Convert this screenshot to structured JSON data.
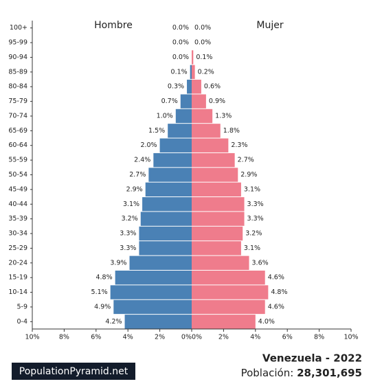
{
  "chart_data": {
    "type": "pyramid",
    "categories": [
      "0-4",
      "5-9",
      "10-14",
      "15-19",
      "20-24",
      "25-29",
      "30-34",
      "35-39",
      "40-44",
      "45-49",
      "50-54",
      "55-59",
      "60-64",
      "65-69",
      "70-74",
      "75-79",
      "80-84",
      "85-89",
      "90-94",
      "95-99",
      "100+"
    ],
    "series": [
      {
        "name": "Hombre",
        "color": "#4a81b5",
        "side": "left",
        "values": [
          4.2,
          4.9,
          5.1,
          4.8,
          3.9,
          3.3,
          3.3,
          3.2,
          3.1,
          2.9,
          2.7,
          2.4,
          2.0,
          1.5,
          1.0,
          0.7,
          0.3,
          0.1,
          0.0,
          0.0,
          0.0
        ],
        "value_labels": [
          "4.2%",
          "4.9%",
          "5.1%",
          "4.8%",
          "3.9%",
          "3.3%",
          "3.3%",
          "3.2%",
          "3.1%",
          "2.9%",
          "2.7%",
          "2.4%",
          "2.0%",
          "1.5%",
          "1.0%",
          "0.7%",
          "0.3%",
          "0.1%",
          "0.0%",
          "0.0%",
          "0.0%"
        ]
      },
      {
        "name": "Mujer",
        "color": "#ef7c8c",
        "side": "right",
        "values": [
          4.0,
          4.6,
          4.8,
          4.6,
          3.6,
          3.1,
          3.2,
          3.3,
          3.3,
          3.1,
          2.9,
          2.7,
          2.3,
          1.8,
          1.3,
          0.9,
          0.6,
          0.2,
          0.1,
          0.0,
          0.0
        ],
        "value_labels": [
          "4.0%",
          "4.6%",
          "4.8%",
          "4.6%",
          "3.6%",
          "3.1%",
          "3.2%",
          "3.3%",
          "3.3%",
          "3.1%",
          "2.9%",
          "2.7%",
          "2.3%",
          "1.8%",
          "1.3%",
          "0.9%",
          "0.6%",
          "0.2%",
          "0.1%",
          "0.0%",
          "0.0%"
        ]
      }
    ],
    "xlim": [
      0,
      10
    ],
    "xticks_left": [
      {
        "value": 10,
        "label": "10%"
      },
      {
        "value": 8,
        "label": "8%"
      },
      {
        "value": 6,
        "label": "6%"
      },
      {
        "value": 4,
        "label": "4%"
      },
      {
        "value": 2,
        "label": "2%"
      },
      {
        "value": 0,
        "label": "0%"
      }
    ],
    "xticks": [
      {
        "value": 0,
        "label": "0%"
      },
      {
        "value": 2,
        "label": "2%"
      },
      {
        "value": 4,
        "label": "4%"
      },
      {
        "value": 6,
        "label": "6%"
      },
      {
        "value": 8,
        "label": "8%"
      },
      {
        "value": 10,
        "label": "10%"
      }
    ],
    "country_title": "Venezuela - 2022",
    "population_label": "Población:",
    "population": "28,301,695",
    "source": "PopulationPyramid.net"
  }
}
